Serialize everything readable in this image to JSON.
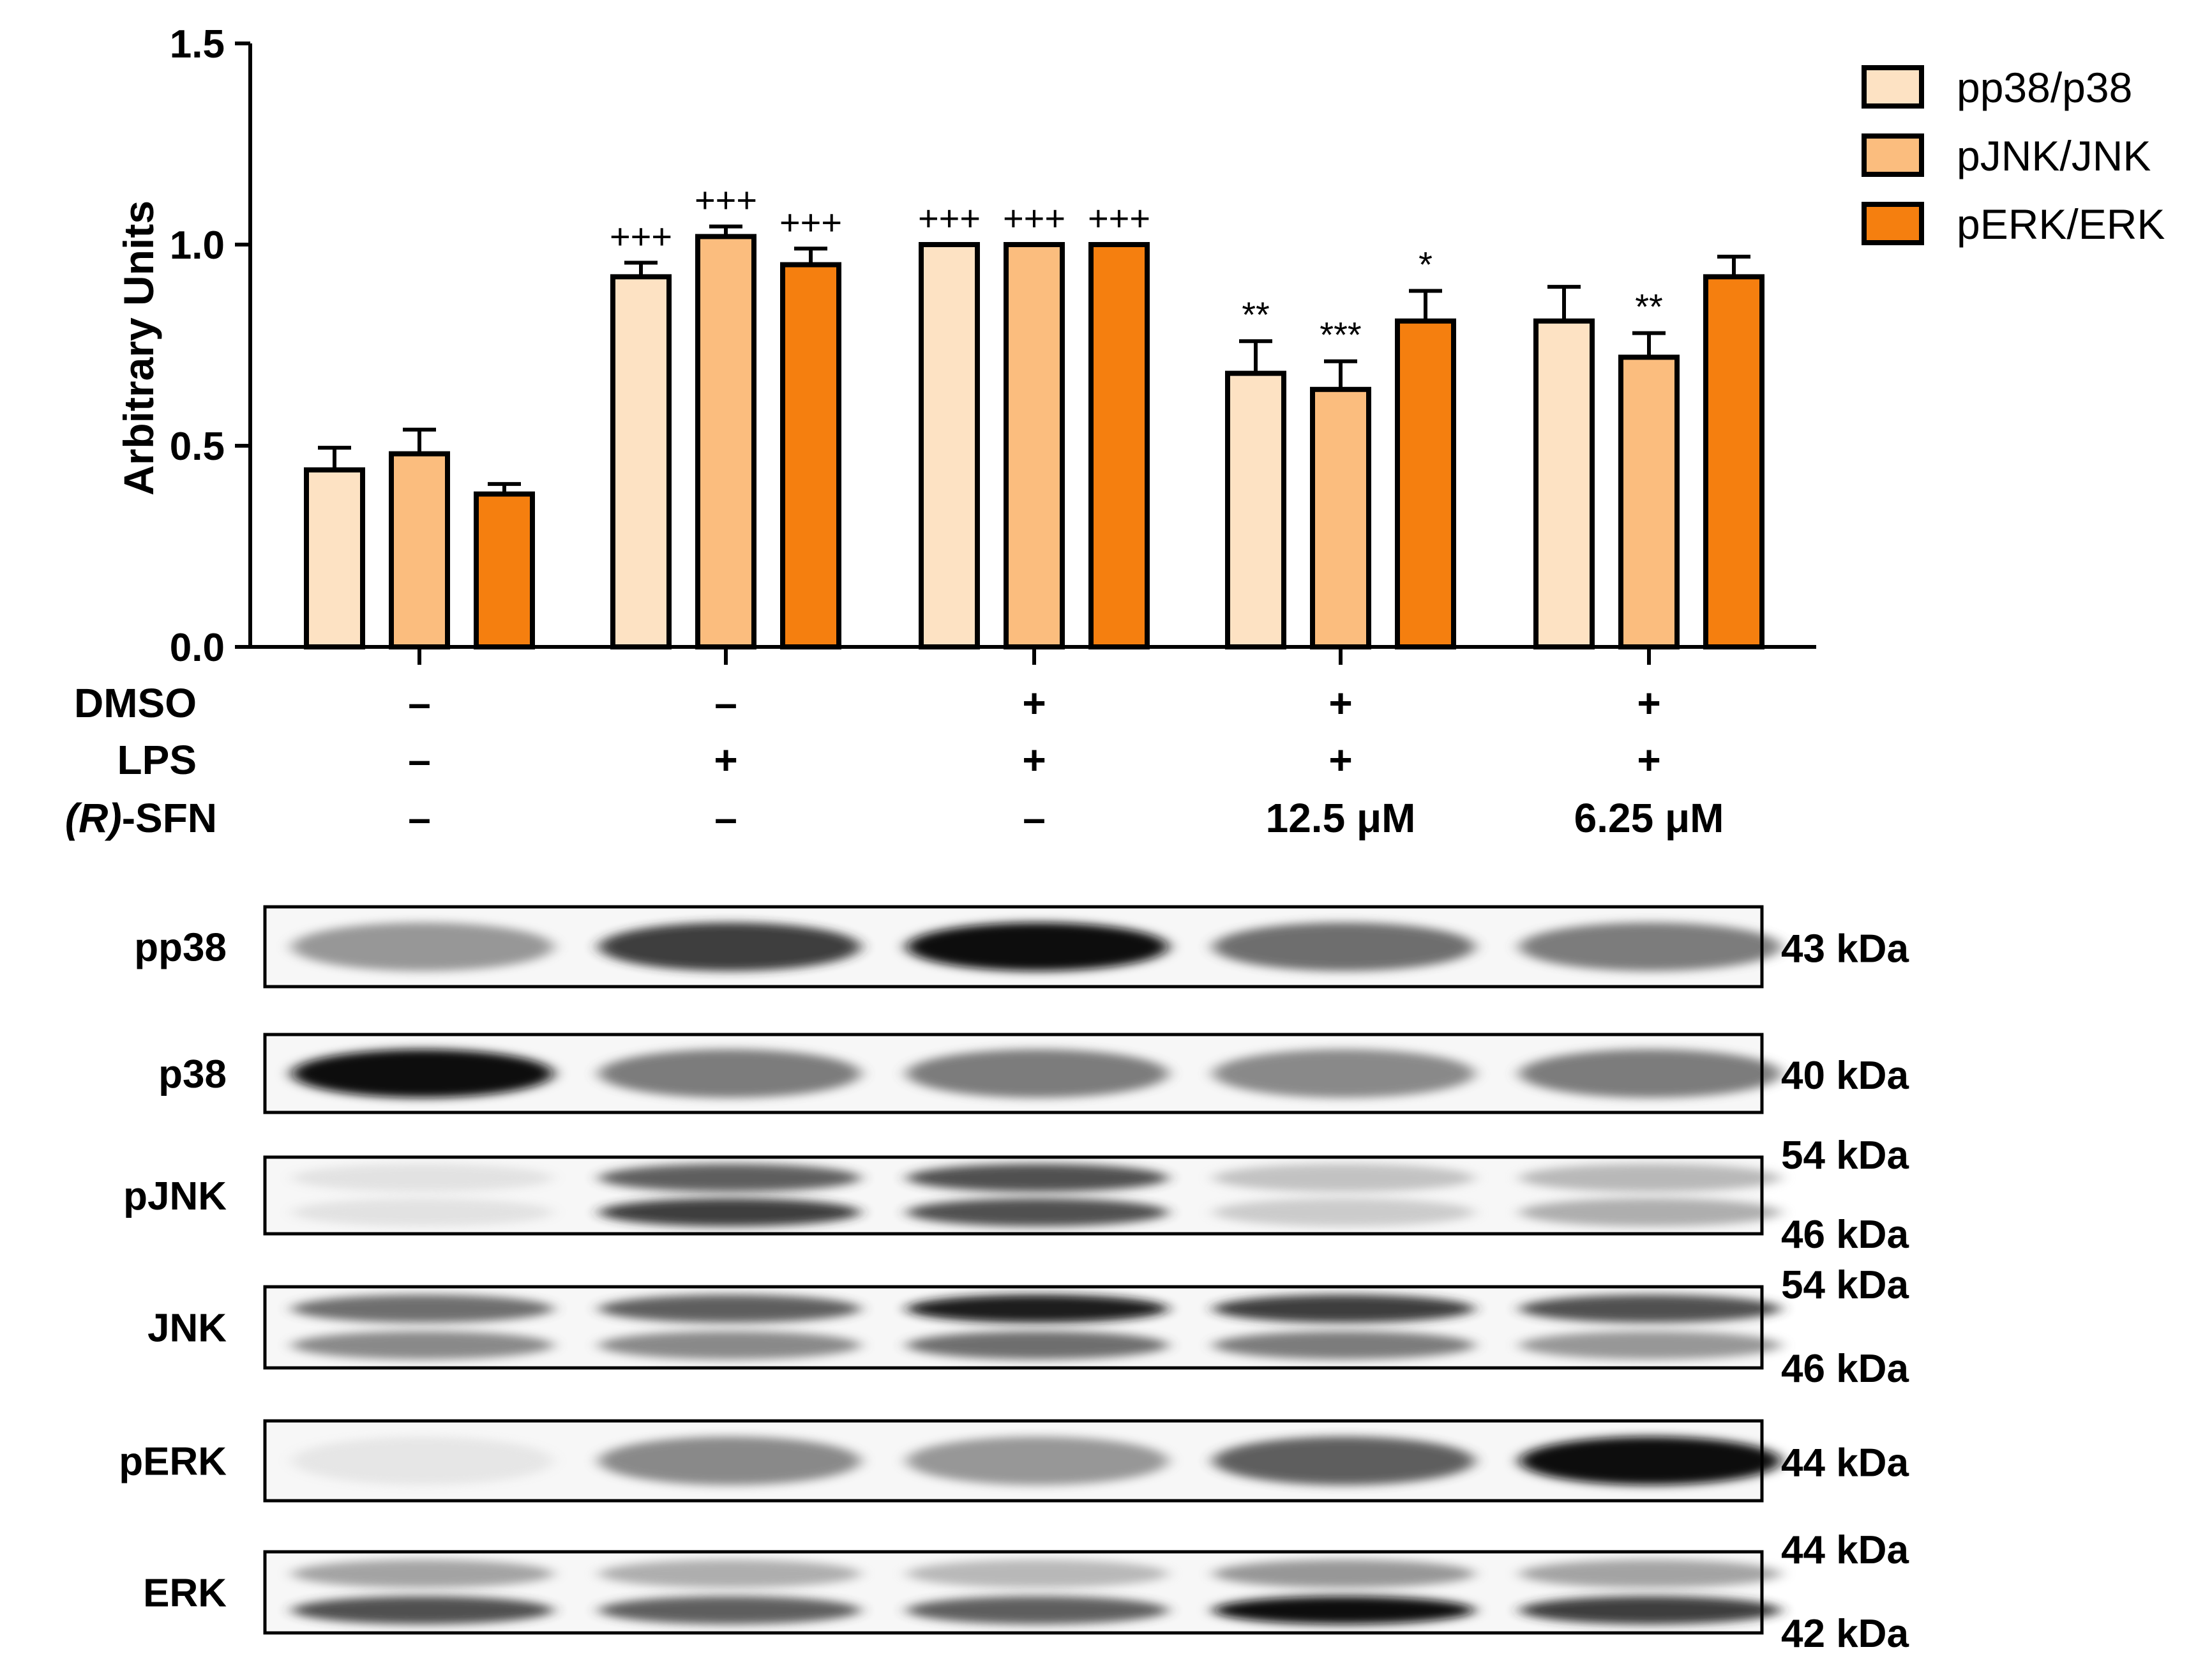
{
  "chart_data": {
    "type": "bar",
    "title": "",
    "xlabel": "",
    "ylabel": "Arbitrary Units",
    "ylim": [
      0,
      1.5
    ],
    "yticks": [
      "0.0",
      "0.5",
      "1.0",
      "1.5"
    ],
    "grid": false,
    "legend_position": "top-right",
    "groups": 5,
    "series": [
      {
        "name": "pp38/p38",
        "color": "#FDE2C3",
        "values": [
          0.44,
          0.92,
          1.0,
          0.68,
          0.81
        ],
        "errors": [
          0.055,
          0.035,
          0.0,
          0.08,
          0.085
        ],
        "annotations": [
          "",
          "+++",
          "+++",
          "**",
          ""
        ]
      },
      {
        "name": "pJNK/JNK",
        "color": "#FBBD7E",
        "values": [
          0.48,
          1.02,
          1.0,
          0.64,
          0.72
        ],
        "errors": [
          0.06,
          0.025,
          0.0,
          0.07,
          0.06
        ],
        "annotations": [
          "",
          "+++",
          "+++",
          "***",
          "**"
        ]
      },
      {
        "name": "pERK/ERK",
        "color": "#F57F0F",
        "values": [
          0.38,
          0.95,
          1.0,
          0.81,
          0.92
        ],
        "errors": [
          0.025,
          0.04,
          0.0,
          0.075,
          0.05
        ],
        "annotations": [
          "",
          "+++",
          "+++",
          "*",
          ""
        ]
      }
    ],
    "conditions": [
      {
        "label": "DMSO",
        "values": [
          "–",
          "–",
          "+",
          "+",
          "+"
        ]
      },
      {
        "label": "LPS",
        "values": [
          "–",
          "+",
          "+",
          "+",
          "+"
        ]
      },
      {
        "label_italic": "(R)",
        "label_rest": "-SFN",
        "values": [
          "–",
          "–",
          "–",
          "12.5 μM",
          "6.25 μM"
        ]
      }
    ]
  },
  "blots": [
    {
      "label": "pp38",
      "kda": [
        "43 kDa"
      ],
      "bands": [
        [
          0.55,
          0.85,
          1.0,
          0.7,
          0.65
        ]
      ]
    },
    {
      "label": "p38",
      "kda": [
        "40 kDa"
      ],
      "bands": [
        [
          1.0,
          0.65,
          0.65,
          0.6,
          0.65
        ]
      ]
    },
    {
      "label": "pJNK",
      "kda": [
        "54 kDa",
        "46 kDa"
      ],
      "bands": [
        [
          0.15,
          0.75,
          0.8,
          0.35,
          0.4
        ],
        [
          0.15,
          0.85,
          0.8,
          0.3,
          0.45
        ]
      ]
    },
    {
      "label": "JNK",
      "kda": [
        "54 kDa",
        "46 kDa"
      ],
      "bands": [
        [
          0.7,
          0.75,
          0.95,
          0.85,
          0.8
        ],
        [
          0.6,
          0.6,
          0.7,
          0.65,
          0.55
        ]
      ]
    },
    {
      "label": "pERK",
      "kda": [
        "44 kDa"
      ],
      "bands": [
        [
          0.12,
          0.6,
          0.55,
          0.75,
          1.0
        ]
      ]
    },
    {
      "label": "ERK",
      "kda": [
        "44 kDa",
        "42 kDa"
      ],
      "bands": [
        [
          0.5,
          0.45,
          0.4,
          0.55,
          0.5
        ],
        [
          0.8,
          0.75,
          0.75,
          1.0,
          0.85
        ]
      ]
    }
  ]
}
